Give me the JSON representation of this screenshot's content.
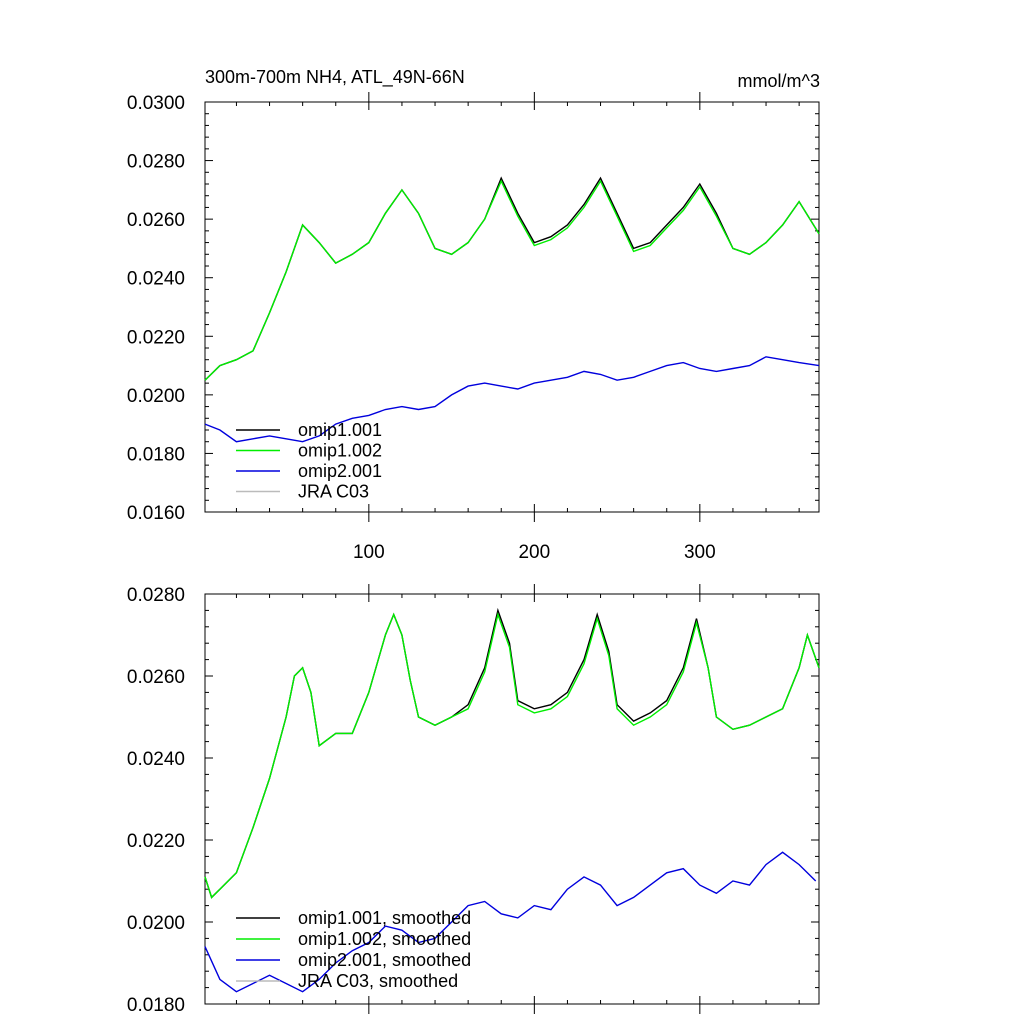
{
  "top": {
    "title": "300m-700m NH4, ATL_49N-66N",
    "units": "mmol/m^3",
    "xlim": [
      1,
      372
    ],
    "ylim": [
      0.016,
      0.03
    ],
    "yticks": [
      "0.0160",
      "0.0180",
      "0.0200",
      "0.0220",
      "0.0240",
      "0.0260",
      "0.0280",
      "0.0300"
    ],
    "xticks": [
      "100",
      "200",
      "300"
    ],
    "legend": [
      "omip1.001",
      "omip1.002",
      "omip2.001",
      "JRA C03"
    ]
  },
  "bottom": {
    "xlim": [
      1,
      372
    ],
    "ylim": [
      0.018,
      0.028
    ],
    "yticks": [
      "0.0180",
      "0.0200",
      "0.0220",
      "0.0240",
      "0.0260",
      "0.0280"
    ],
    "legend": [
      "omip1.001, smoothed",
      "omip1.002, smoothed",
      "omip2.001, smoothed",
      "JRA C03, smoothed"
    ]
  },
  "colors": {
    "omip1_001": "#000000",
    "omip1_002": "#00ee00",
    "omip2_001": "#0000dd",
    "jra": "#bbbbbb"
  },
  "chart_data": [
    {
      "type": "line",
      "title": "300m-700m NH4, ATL_49N-66N",
      "units": "mmol/m^3",
      "xlim": [
        1,
        372
      ],
      "ylim": [
        0.016,
        0.03
      ],
      "series": [
        {
          "name": "omip1.001",
          "x": [
            1,
            10,
            20,
            30,
            40,
            50,
            60,
            70,
            80,
            90,
            100,
            110,
            120,
            130,
            140,
            150,
            160,
            170,
            180,
            190,
            200,
            210,
            220,
            230,
            240,
            250,
            260,
            270,
            280,
            290,
            300,
            310,
            320,
            330,
            340,
            350,
            360,
            372
          ],
          "values": [
            0.0205,
            0.021,
            0.0212,
            0.0215,
            0.0228,
            0.0242,
            0.0258,
            0.0252,
            0.0245,
            0.0248,
            0.0252,
            0.0262,
            0.027,
            0.0262,
            0.025,
            0.0248,
            0.0252,
            0.026,
            0.0274,
            0.0262,
            0.0252,
            0.0254,
            0.0258,
            0.0265,
            0.0274,
            0.0262,
            0.025,
            0.0252,
            0.0258,
            0.0264,
            0.0272,
            0.0262,
            0.025,
            0.0248,
            0.0252,
            0.0258,
            0.0266,
            0.0255
          ]
        },
        {
          "name": "omip1.002",
          "x": [
            1,
            10,
            20,
            30,
            40,
            50,
            60,
            70,
            80,
            90,
            100,
            110,
            120,
            130,
            140,
            150,
            160,
            170,
            180,
            190,
            200,
            210,
            220,
            230,
            240,
            250,
            260,
            270,
            280,
            290,
            300,
            310,
            320,
            330,
            340,
            350,
            360,
            372
          ],
          "values": [
            0.0205,
            0.021,
            0.0212,
            0.0215,
            0.0228,
            0.0242,
            0.0258,
            0.0252,
            0.0245,
            0.0248,
            0.0252,
            0.0262,
            0.027,
            0.0262,
            0.025,
            0.0248,
            0.0252,
            0.026,
            0.0273,
            0.0261,
            0.0251,
            0.0253,
            0.0257,
            0.0264,
            0.0273,
            0.0261,
            0.0249,
            0.0251,
            0.0257,
            0.0263,
            0.0271,
            0.0261,
            0.025,
            0.0248,
            0.0252,
            0.0258,
            0.0266,
            0.0255
          ]
        },
        {
          "name": "omip2.001",
          "x": [
            1,
            10,
            20,
            30,
            40,
            50,
            60,
            70,
            80,
            90,
            100,
            110,
            120,
            130,
            140,
            150,
            160,
            170,
            180,
            190,
            200,
            210,
            220,
            230,
            240,
            250,
            260,
            270,
            280,
            290,
            300,
            310,
            320,
            330,
            340,
            350,
            360,
            372
          ],
          "values": [
            0.019,
            0.0188,
            0.0184,
            0.0185,
            0.0186,
            0.0185,
            0.0184,
            0.0186,
            0.019,
            0.0192,
            0.0193,
            0.0195,
            0.0196,
            0.0195,
            0.0196,
            0.02,
            0.0203,
            0.0204,
            0.0203,
            0.0202,
            0.0204,
            0.0205,
            0.0206,
            0.0208,
            0.0207,
            0.0205,
            0.0206,
            0.0208,
            0.021,
            0.0211,
            0.0209,
            0.0208,
            0.0209,
            0.021,
            0.0213,
            0.0212,
            0.0211,
            0.021
          ]
        },
        {
          "name": "JRA C03",
          "x": [],
          "values": []
        }
      ]
    },
    {
      "type": "line",
      "xlim": [
        1,
        372
      ],
      "ylim": [
        0.018,
        0.028
      ],
      "series": [
        {
          "name": "omip1.001, smoothed",
          "x": [
            1,
            5,
            10,
            20,
            30,
            40,
            50,
            55,
            60,
            65,
            70,
            80,
            90,
            100,
            110,
            115,
            120,
            125,
            130,
            140,
            150,
            160,
            170,
            178,
            185,
            190,
            200,
            210,
            220,
            230,
            238,
            245,
            250,
            260,
            270,
            280,
            290,
            298,
            305,
            310,
            320,
            330,
            340,
            350,
            360,
            365,
            372
          ],
          "values": [
            0.0211,
            0.0206,
            0.0208,
            0.0212,
            0.0223,
            0.0235,
            0.025,
            0.026,
            0.0262,
            0.0256,
            0.0243,
            0.0246,
            0.0246,
            0.0256,
            0.027,
            0.0275,
            0.027,
            0.0259,
            0.025,
            0.0248,
            0.025,
            0.0253,
            0.0262,
            0.0276,
            0.0268,
            0.0254,
            0.0252,
            0.0253,
            0.0256,
            0.0264,
            0.0275,
            0.0266,
            0.0253,
            0.0249,
            0.0251,
            0.0254,
            0.0262,
            0.0274,
            0.0262,
            0.025,
            0.0247,
            0.0248,
            0.025,
            0.0252,
            0.0262,
            0.027,
            0.0262
          ]
        },
        {
          "name": "omip1.002, smoothed",
          "x": [
            1,
            5,
            10,
            20,
            30,
            40,
            50,
            55,
            60,
            65,
            70,
            80,
            90,
            100,
            110,
            115,
            120,
            125,
            130,
            140,
            150,
            160,
            170,
            178,
            185,
            190,
            200,
            210,
            220,
            230,
            238,
            245,
            250,
            260,
            270,
            280,
            290,
            298,
            305,
            310,
            320,
            330,
            340,
            350,
            360,
            365,
            372
          ],
          "values": [
            0.0211,
            0.0206,
            0.0208,
            0.0212,
            0.0223,
            0.0235,
            0.025,
            0.026,
            0.0262,
            0.0256,
            0.0243,
            0.0246,
            0.0246,
            0.0256,
            0.027,
            0.0275,
            0.027,
            0.0259,
            0.025,
            0.0248,
            0.025,
            0.0252,
            0.0261,
            0.0275,
            0.0267,
            0.0253,
            0.0251,
            0.0252,
            0.0255,
            0.0263,
            0.0274,
            0.0265,
            0.0252,
            0.0248,
            0.025,
            0.0253,
            0.0261,
            0.0273,
            0.0262,
            0.025,
            0.0247,
            0.0248,
            0.025,
            0.0252,
            0.0262,
            0.027,
            0.0262
          ]
        },
        {
          "name": "omip2.001, smoothed",
          "x": [
            1,
            10,
            20,
            30,
            40,
            50,
            60,
            70,
            80,
            90,
            100,
            110,
            120,
            130,
            140,
            150,
            160,
            170,
            180,
            190,
            200,
            210,
            220,
            230,
            240,
            250,
            260,
            270,
            280,
            290,
            300,
            310,
            320,
            330,
            340,
            350,
            360,
            370
          ],
          "values": [
            0.0194,
            0.0186,
            0.0183,
            0.0185,
            0.0187,
            0.0185,
            0.0183,
            0.0186,
            0.019,
            0.0193,
            0.0195,
            0.0199,
            0.0198,
            0.0195,
            0.0196,
            0.02,
            0.0204,
            0.0205,
            0.0202,
            0.0201,
            0.0204,
            0.0203,
            0.0208,
            0.0211,
            0.0209,
            0.0204,
            0.0206,
            0.0209,
            0.0212,
            0.0213,
            0.0209,
            0.0207,
            0.021,
            0.0209,
            0.0214,
            0.0217,
            0.0214,
            0.021
          ]
        },
        {
          "name": "JRA C03, smoothed",
          "x": [],
          "values": []
        }
      ]
    }
  ]
}
